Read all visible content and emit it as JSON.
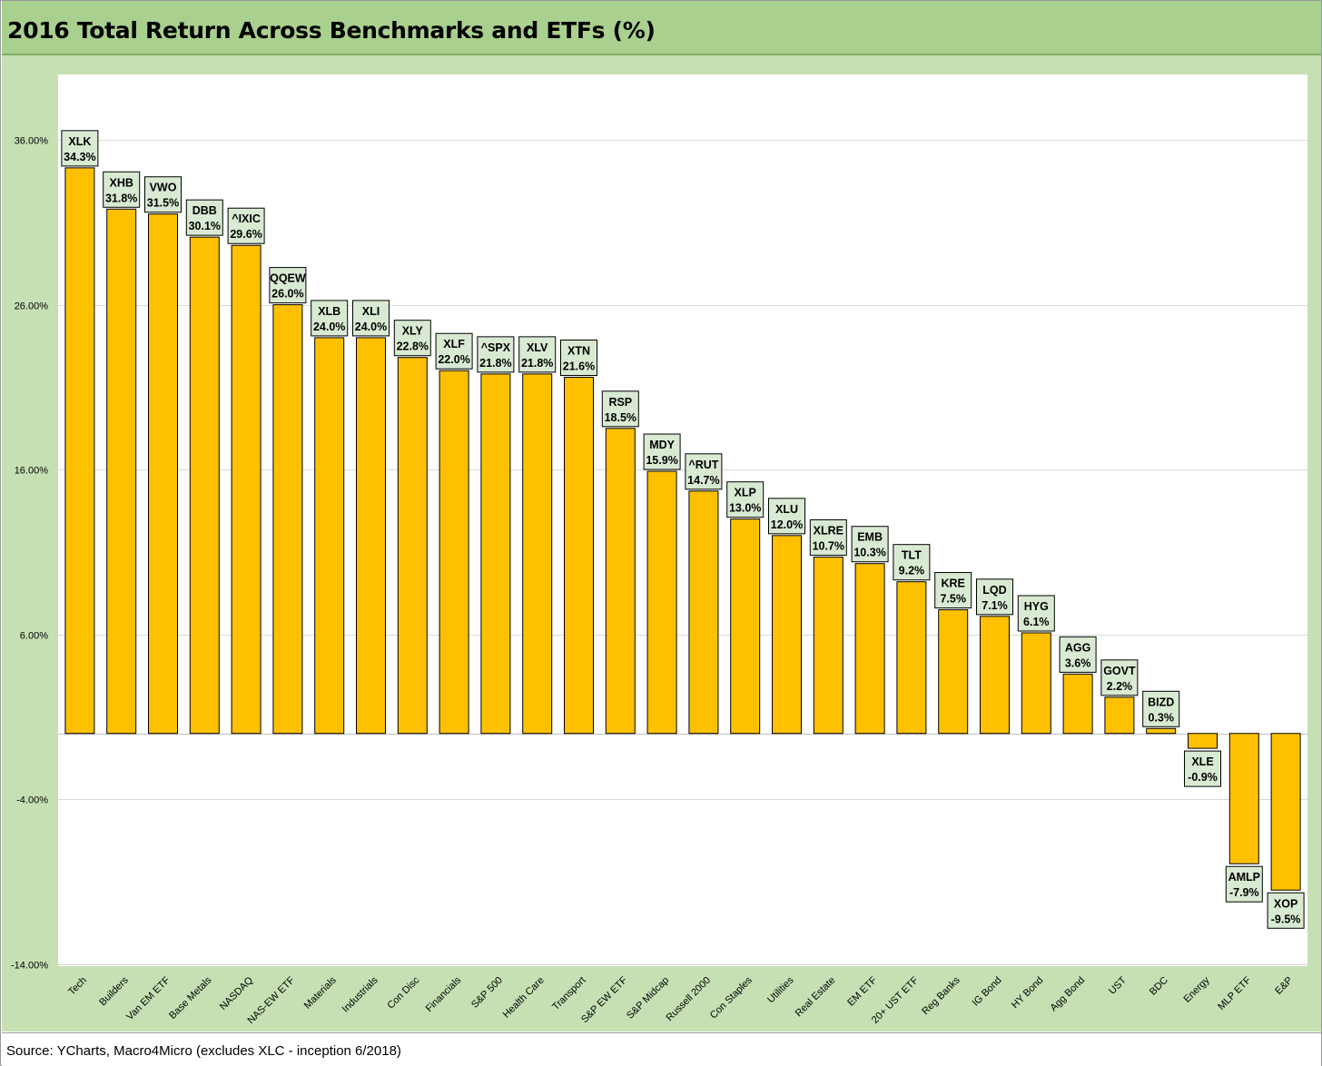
{
  "title": "2016 Total Return Across Benchmarks and ETFs (%)",
  "source": "Source: YCharts, Macro4Micro (excludes XLC - inception 6/2018)",
  "colors": {
    "title_band": "#a9d08e",
    "chart_band": "#c6e0b4",
    "bar_fill": "#ffc000",
    "label_fill": "#d9ead3",
    "gridline": "#d9d9d9"
  },
  "chart_data": {
    "type": "bar",
    "title": "2016 Total Return Across Benchmarks and ETFs (%)",
    "xlabel": "",
    "ylabel": "",
    "ylim": [
      -14,
      40
    ],
    "yticks": [
      36,
      26,
      16,
      6,
      -4,
      -14
    ],
    "ytick_labels": [
      "36.00%",
      "26.00%",
      "16.00%",
      "6.00%",
      "-4.00%",
      "-14.00%"
    ],
    "grid": true,
    "legend": "none",
    "categories": [
      "Tech",
      "Builders",
      "Van EM ETF",
      "Base Metals",
      "NASDAQ",
      "NAS-EW ETF",
      "Materials",
      "Industrials",
      "Con Disc",
      "Financials",
      "S&P 500",
      "Health Care",
      "Transport",
      "S&P EW ETF",
      "S&P Midcap",
      "Russell 2000",
      "Con Staples",
      "Utilities",
      "Real Estate",
      "EM ETF",
      "20+ UST ETF",
      "Reg Banks",
      "IG Bond",
      "HY Bond",
      "Agg Bond",
      "UST",
      "BDC",
      "Energy",
      "MLP ETF",
      "E&P"
    ],
    "tickers": [
      "XLK",
      "XHB",
      "VWO",
      "DBB",
      "^IXIC",
      "QQEW",
      "XLB",
      "XLI",
      "XLY",
      "XLF",
      "^SPX",
      "XLV",
      "XTN",
      "RSP",
      "MDY",
      "^RUT",
      "XLP",
      "XLU",
      "XLRE",
      "EMB",
      "TLT",
      "KRE",
      "LQD",
      "HYG",
      "AGG",
      "GOVT",
      "BIZD",
      "XLE",
      "AMLP",
      "XOP"
    ],
    "values": [
      34.3,
      31.8,
      31.5,
      30.1,
      29.6,
      26.0,
      24.0,
      24.0,
      22.8,
      22.0,
      21.8,
      21.8,
      21.6,
      18.5,
      15.9,
      14.7,
      13.0,
      12.0,
      10.7,
      10.3,
      9.2,
      7.5,
      7.1,
      6.1,
      3.6,
      2.2,
      0.3,
      -0.9,
      -7.9,
      -9.5
    ],
    "data_labels": [
      "34.3%",
      "31.8%",
      "31.5%",
      "30.1%",
      "29.6%",
      "26.0%",
      "24.0%",
      "24.0%",
      "22.8%",
      "22.0%",
      "21.8%",
      "21.8%",
      "21.6%",
      "18.5%",
      "15.9%",
      "14.7%",
      "13.0%",
      "12.0%",
      "10.7%",
      "10.3%",
      "9.2%",
      "7.5%",
      "7.1%",
      "6.1%",
      "3.6%",
      "2.2%",
      "0.3%",
      "-0.9%",
      "-7.9%",
      "-9.5%"
    ]
  }
}
